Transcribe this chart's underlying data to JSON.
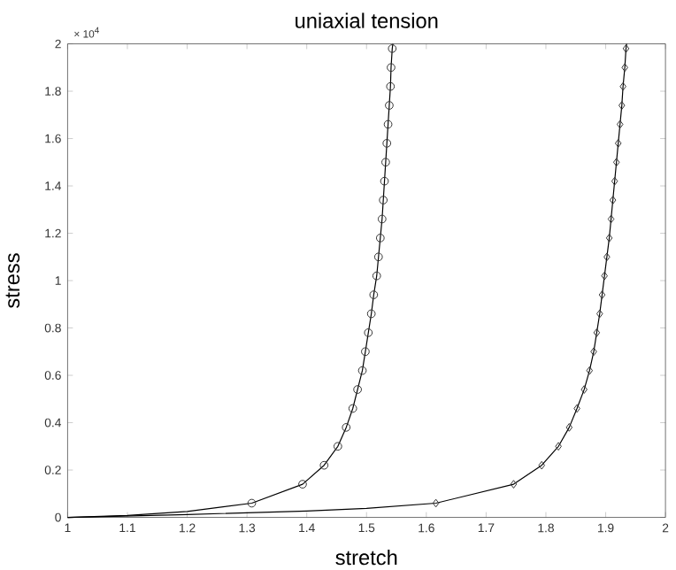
{
  "chart_data": {
    "type": "line",
    "title": "uniaxial tension",
    "xlabel": "stretch",
    "ylabel": "stress",
    "annotations": [
      "× 10$^{4}$"
    ],
    "xlim": [
      1,
      2
    ],
    "xticks": [
      1,
      1.1,
      1.2,
      1.3,
      1.4,
      1.5,
      1.6,
      1.7,
      1.8,
      1.9,
      2
    ],
    "ylim": [
      0,
      2
    ],
    "yticks": [
      0,
      0.2,
      0.4,
      0.6,
      0.8,
      1,
      1.2,
      1.4,
      1.6,
      1.8,
      2
    ],
    "series": [
      {
        "color": "#000000",
        "marker": "none",
        "line_style": "solid",
        "x": [
          1,
          1.1,
          1.2,
          1.308,
          1.393,
          1.429,
          1.452,
          1.466,
          1.477,
          1.485,
          1.493,
          1.498,
          1.503,
          1.508,
          1.512,
          1.517,
          1.52,
          1.523,
          1.526,
          1.528,
          1.53,
          1.532,
          1.534,
          1.536,
          1.538,
          1.54,
          1.541,
          1.543,
          1.544
        ],
        "values": [
          0,
          0.008,
          0.025,
          0.06,
          0.14,
          0.22,
          0.3,
          0.38,
          0.46,
          0.54,
          0.62,
          0.7,
          0.78,
          0.86,
          0.94,
          1.02,
          1.1,
          1.18,
          1.26,
          1.34,
          1.42,
          1.5,
          1.58,
          1.66,
          1.74,
          1.82,
          1.9,
          1.98,
          2
        ]
      },
      {
        "color": "#000000",
        "marker": "none",
        "line_style": "solid",
        "x": [
          1,
          1.2,
          1.4,
          1.5,
          1.616,
          1.746,
          1.793,
          1.821,
          1.839,
          1.852,
          1.864,
          1.873,
          1.88,
          1.885,
          1.89,
          1.894,
          1.898,
          1.902,
          1.906,
          1.909,
          1.912,
          1.915,
          1.918,
          1.921,
          1.924,
          1.927,
          1.929,
          1.932,
          1.934,
          1.935
        ],
        "values": [
          0,
          0.012,
          0.027,
          0.038,
          0.06,
          0.14,
          0.22,
          0.3,
          0.38,
          0.46,
          0.54,
          0.62,
          0.7,
          0.78,
          0.86,
          0.94,
          1.02,
          1.1,
          1.18,
          1.26,
          1.34,
          1.42,
          1.5,
          1.58,
          1.66,
          1.74,
          1.82,
          1.9,
          1.98,
          2
        ]
      },
      {
        "type": "scatter",
        "color": "#333333",
        "marker": "circle",
        "x": [
          1.308,
          1.393,
          1.429,
          1.452,
          1.466,
          1.477,
          1.485,
          1.493,
          1.498,
          1.503,
          1.508,
          1.512,
          1.517,
          1.52,
          1.523,
          1.526,
          1.528,
          1.53,
          1.532,
          1.534,
          1.536,
          1.538,
          1.54,
          1.541,
          1.543
        ],
        "values": [
          0.06,
          0.14,
          0.22,
          0.3,
          0.38,
          0.46,
          0.54,
          0.62,
          0.7,
          0.78,
          0.86,
          0.94,
          1.02,
          1.1,
          1.18,
          1.26,
          1.34,
          1.42,
          1.5,
          1.58,
          1.66,
          1.74,
          1.82,
          1.9,
          1.98
        ]
      },
      {
        "type": "scatter",
        "color": "#333333",
        "marker": "diamond",
        "x": [
          1.616,
          1.746,
          1.793,
          1.821,
          1.839,
          1.852,
          1.864,
          1.873,
          1.88,
          1.885,
          1.89,
          1.894,
          1.898,
          1.902,
          1.906,
          1.909,
          1.912,
          1.915,
          1.918,
          1.921,
          1.924,
          1.927,
          1.929,
          1.932,
          1.934
        ],
        "values": [
          0.06,
          0.14,
          0.22,
          0.3,
          0.38,
          0.46,
          0.54,
          0.62,
          0.7,
          0.78,
          0.86,
          0.94,
          1.02,
          1.1,
          1.18,
          1.26,
          1.34,
          1.42,
          1.5,
          1.58,
          1.66,
          1.74,
          1.82,
          1.9,
          1.98
        ]
      }
    ]
  }
}
